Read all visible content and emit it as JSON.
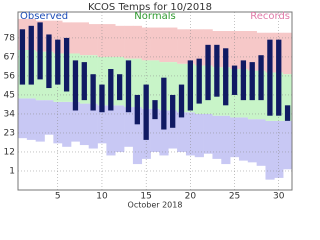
{
  "chart_data": {
    "type": "range-bar",
    "title": "KCOS Temps for 10/2018",
    "x_label": "October 2018",
    "x": [
      1,
      2,
      3,
      4,
      5,
      6,
      7,
      8,
      9,
      10,
      11,
      12,
      13,
      14,
      15,
      16,
      17,
      18,
      19,
      20,
      21,
      22,
      23,
      24,
      25,
      26,
      27,
      28,
      29,
      30,
      31
    ],
    "xlim": [
      0.5,
      31.5
    ],
    "xticks": [
      5,
      10,
      15,
      20,
      25,
      30
    ],
    "ylim": [
      -10,
      93
    ],
    "yticks": [
      1,
      12,
      23,
      34,
      45,
      56,
      67,
      78
    ],
    "grid": true,
    "series": [
      {
        "name": "Observed",
        "color": "#101a63",
        "high": [
          83,
          85,
          87,
          80,
          77,
          78,
          65,
          64,
          57,
          51,
          60,
          57,
          65,
          45,
          51,
          42,
          55,
          45,
          51,
          65,
          66,
          74,
          74,
          72,
          62,
          65,
          64,
          68,
          77,
          77,
          39
        ],
        "low": [
          51,
          51,
          54,
          49,
          51,
          47,
          36,
          42,
          36,
          35,
          36,
          42,
          35,
          28,
          19,
          31,
          25,
          26,
          32,
          36,
          40,
          42,
          44,
          39,
          45,
          42,
          42,
          42,
          33,
          33,
          30
        ]
      },
      {
        "name": "Normals",
        "color": "#c8f4c8",
        "high": [
          71,
          71,
          70,
          70,
          69,
          69,
          69,
          68,
          68,
          67,
          67,
          67,
          66,
          66,
          65,
          65,
          64,
          64,
          63,
          63,
          62,
          62,
          61,
          61,
          60,
          60,
          59,
          59,
          58,
          58,
          57
        ],
        "low": [
          43,
          43,
          42,
          42,
          41,
          41,
          41,
          40,
          40,
          39,
          39,
          39,
          38,
          38,
          37,
          37,
          36,
          36,
          35,
          35,
          34,
          34,
          33,
          33,
          32,
          32,
          31,
          31,
          30,
          30,
          30
        ]
      },
      {
        "name": "Records",
        "color": "#f6c8c8",
        "high": [
          89,
          89,
          88,
          88,
          88,
          87,
          87,
          87,
          86,
          86,
          86,
          85,
          85,
          85,
          84,
          84,
          84,
          84,
          83,
          83,
          83,
          83,
          82,
          82,
          82,
          82,
          82,
          81,
          81,
          81,
          81
        ],
        "low": [
          20,
          19,
          18,
          22,
          17,
          15,
          18,
          16,
          14,
          17,
          10,
          12,
          15,
          5,
          8,
          12,
          10,
          14,
          12,
          10,
          9,
          11,
          8,
          5,
          9,
          7,
          6,
          4,
          -4,
          -3,
          2
        ]
      }
    ],
    "record_low_color": "#c8c8f4"
  }
}
